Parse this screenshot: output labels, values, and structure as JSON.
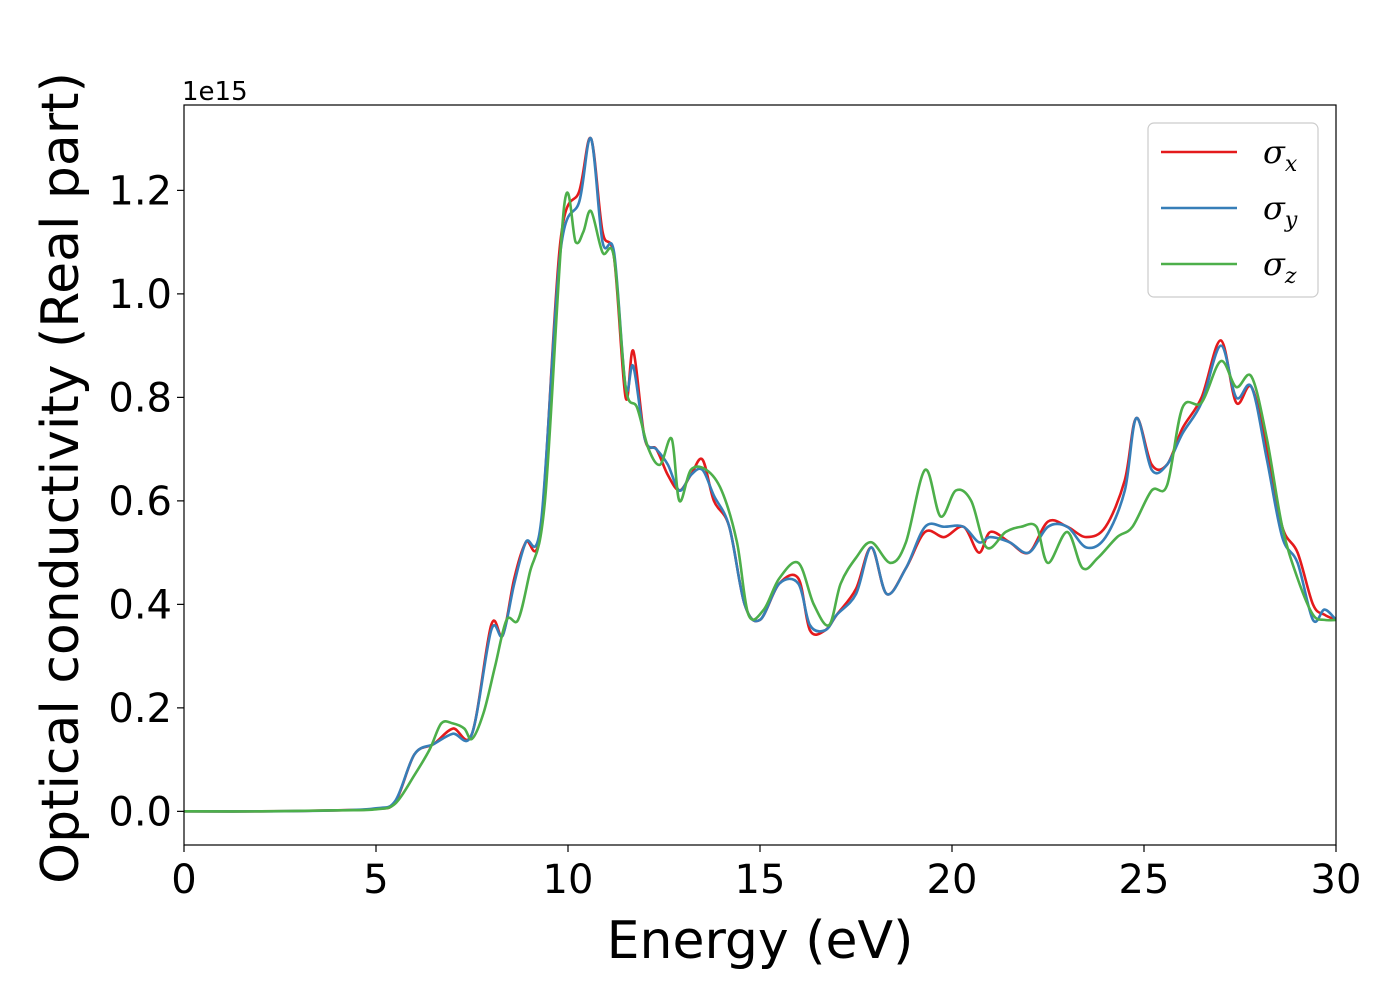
{
  "chart_data": {
    "type": "line",
    "xlabel": "Energy (eV)",
    "ylabel": "Optical conductivity (Real part)",
    "y_offset_text": "1e15",
    "xlim": [
      0,
      30
    ],
    "ylim": [
      -0.065,
      1.365
    ],
    "x_ticks": [
      0,
      5,
      10,
      15,
      20,
      25,
      30
    ],
    "y_ticks": [
      0.0,
      0.2,
      0.4,
      0.6,
      0.8,
      1.0,
      1.2
    ],
    "y_tick_labels": [
      "0.0",
      "0.2",
      "0.4",
      "0.6",
      "0.8",
      "1.0",
      "1.2"
    ],
    "grid": false,
    "legend_position": "top-right",
    "series": [
      {
        "name": "σx",
        "legend_symbol": "σ",
        "legend_subscript": "x",
        "color": "#e41a1c",
        "points": [
          [
            0,
            0.0
          ],
          [
            2,
            0.0
          ],
          [
            4,
            0.002
          ],
          [
            5,
            0.005
          ],
          [
            5.5,
            0.018
          ],
          [
            6.0,
            0.11
          ],
          [
            6.5,
            0.13
          ],
          [
            7.0,
            0.16
          ],
          [
            7.5,
            0.15
          ],
          [
            8.0,
            0.36
          ],
          [
            8.3,
            0.34
          ],
          [
            8.6,
            0.45
          ],
          [
            8.9,
            0.52
          ],
          [
            9.3,
            0.55
          ],
          [
            9.8,
            1.1
          ],
          [
            10.3,
            1.2
          ],
          [
            10.6,
            1.3
          ],
          [
            10.9,
            1.12
          ],
          [
            11.2,
            1.07
          ],
          [
            11.5,
            0.8
          ],
          [
            11.7,
            0.89
          ],
          [
            12.0,
            0.72
          ],
          [
            12.3,
            0.7
          ],
          [
            12.6,
            0.65
          ],
          [
            12.9,
            0.62
          ],
          [
            13.2,
            0.65
          ],
          [
            13.5,
            0.68
          ],
          [
            13.8,
            0.6
          ],
          [
            14.2,
            0.55
          ],
          [
            14.6,
            0.4
          ],
          [
            15.0,
            0.37
          ],
          [
            15.5,
            0.44
          ],
          [
            16.0,
            0.45
          ],
          [
            16.3,
            0.35
          ],
          [
            16.7,
            0.35
          ],
          [
            17.0,
            0.38
          ],
          [
            17.5,
            0.43
          ],
          [
            17.9,
            0.51
          ],
          [
            18.3,
            0.42
          ],
          [
            18.8,
            0.47
          ],
          [
            19.3,
            0.54
          ],
          [
            19.8,
            0.53
          ],
          [
            20.3,
            0.55
          ],
          [
            20.7,
            0.5
          ],
          [
            21.0,
            0.54
          ],
          [
            21.5,
            0.52
          ],
          [
            22.0,
            0.5
          ],
          [
            22.5,
            0.56
          ],
          [
            23.0,
            0.55
          ],
          [
            23.5,
            0.53
          ],
          [
            24.0,
            0.55
          ],
          [
            24.5,
            0.64
          ],
          [
            24.8,
            0.76
          ],
          [
            25.2,
            0.67
          ],
          [
            25.6,
            0.67
          ],
          [
            26.0,
            0.74
          ],
          [
            26.5,
            0.8
          ],
          [
            27.0,
            0.91
          ],
          [
            27.4,
            0.79
          ],
          [
            27.8,
            0.82
          ],
          [
            28.2,
            0.7
          ],
          [
            28.6,
            0.55
          ],
          [
            29.0,
            0.5
          ],
          [
            29.4,
            0.4
          ],
          [
            29.7,
            0.38
          ],
          [
            30.0,
            0.37
          ]
        ]
      },
      {
        "name": "σy",
        "legend_symbol": "σ",
        "legend_subscript": "y",
        "color": "#377eb8",
        "points": [
          [
            0,
            0.0
          ],
          [
            2,
            0.0
          ],
          [
            4,
            0.002
          ],
          [
            5,
            0.006
          ],
          [
            5.5,
            0.02
          ],
          [
            6.0,
            0.11
          ],
          [
            6.5,
            0.13
          ],
          [
            7.0,
            0.15
          ],
          [
            7.5,
            0.15
          ],
          [
            8.0,
            0.35
          ],
          [
            8.3,
            0.34
          ],
          [
            8.6,
            0.44
          ],
          [
            8.9,
            0.52
          ],
          [
            9.3,
            0.56
          ],
          [
            9.8,
            1.08
          ],
          [
            10.3,
            1.18
          ],
          [
            10.6,
            1.3
          ],
          [
            10.9,
            1.1
          ],
          [
            11.2,
            1.08
          ],
          [
            11.5,
            0.82
          ],
          [
            11.7,
            0.86
          ],
          [
            12.0,
            0.72
          ],
          [
            12.3,
            0.7
          ],
          [
            12.6,
            0.67
          ],
          [
            12.9,
            0.62
          ],
          [
            13.2,
            0.65
          ],
          [
            13.5,
            0.66
          ],
          [
            13.8,
            0.61
          ],
          [
            14.2,
            0.55
          ],
          [
            14.6,
            0.4
          ],
          [
            15.0,
            0.37
          ],
          [
            15.5,
            0.44
          ],
          [
            16.0,
            0.44
          ],
          [
            16.3,
            0.36
          ],
          [
            16.7,
            0.35
          ],
          [
            17.0,
            0.38
          ],
          [
            17.5,
            0.42
          ],
          [
            17.9,
            0.51
          ],
          [
            18.3,
            0.42
          ],
          [
            18.8,
            0.47
          ],
          [
            19.3,
            0.55
          ],
          [
            19.8,
            0.55
          ],
          [
            20.3,
            0.55
          ],
          [
            20.7,
            0.52
          ],
          [
            21.0,
            0.53
          ],
          [
            21.5,
            0.52
          ],
          [
            22.0,
            0.5
          ],
          [
            22.5,
            0.55
          ],
          [
            23.0,
            0.55
          ],
          [
            23.5,
            0.51
          ],
          [
            24.0,
            0.53
          ],
          [
            24.5,
            0.62
          ],
          [
            24.8,
            0.76
          ],
          [
            25.2,
            0.66
          ],
          [
            25.6,
            0.67
          ],
          [
            26.0,
            0.73
          ],
          [
            26.5,
            0.79
          ],
          [
            27.0,
            0.9
          ],
          [
            27.4,
            0.8
          ],
          [
            27.8,
            0.82
          ],
          [
            28.2,
            0.68
          ],
          [
            28.6,
            0.53
          ],
          [
            29.0,
            0.48
          ],
          [
            29.4,
            0.37
          ],
          [
            29.7,
            0.39
          ],
          [
            30.0,
            0.37
          ]
        ]
      },
      {
        "name": "σz",
        "legend_symbol": "σ",
        "legend_subscript": "z",
        "color": "#4daf4a",
        "points": [
          [
            0,
            0.0
          ],
          [
            2,
            0.0
          ],
          [
            4,
            0.002
          ],
          [
            5,
            0.004
          ],
          [
            5.5,
            0.015
          ],
          [
            6.0,
            0.07
          ],
          [
            6.4,
            0.12
          ],
          [
            6.7,
            0.17
          ],
          [
            7.0,
            0.17
          ],
          [
            7.3,
            0.16
          ],
          [
            7.5,
            0.14
          ],
          [
            7.8,
            0.19
          ],
          [
            8.1,
            0.28
          ],
          [
            8.4,
            0.37
          ],
          [
            8.7,
            0.37
          ],
          [
            9.0,
            0.46
          ],
          [
            9.4,
            0.6
          ],
          [
            9.9,
            1.17
          ],
          [
            10.2,
            1.1
          ],
          [
            10.4,
            1.12
          ],
          [
            10.6,
            1.16
          ],
          [
            10.9,
            1.08
          ],
          [
            11.2,
            1.07
          ],
          [
            11.5,
            0.82
          ],
          [
            11.8,
            0.78
          ],
          [
            12.1,
            0.7
          ],
          [
            12.4,
            0.67
          ],
          [
            12.7,
            0.72
          ],
          [
            12.9,
            0.6
          ],
          [
            13.2,
            0.66
          ],
          [
            13.6,
            0.66
          ],
          [
            14.0,
            0.62
          ],
          [
            14.4,
            0.52
          ],
          [
            14.7,
            0.38
          ],
          [
            15.1,
            0.39
          ],
          [
            15.5,
            0.45
          ],
          [
            16.0,
            0.48
          ],
          [
            16.4,
            0.4
          ],
          [
            16.8,
            0.36
          ],
          [
            17.1,
            0.44
          ],
          [
            17.5,
            0.49
          ],
          [
            17.9,
            0.52
          ],
          [
            18.4,
            0.48
          ],
          [
            18.8,
            0.52
          ],
          [
            19.3,
            0.66
          ],
          [
            19.7,
            0.57
          ],
          [
            20.1,
            0.62
          ],
          [
            20.5,
            0.6
          ],
          [
            20.9,
            0.51
          ],
          [
            21.4,
            0.54
          ],
          [
            21.8,
            0.55
          ],
          [
            22.2,
            0.55
          ],
          [
            22.5,
            0.48
          ],
          [
            23.0,
            0.54
          ],
          [
            23.4,
            0.47
          ],
          [
            23.8,
            0.49
          ],
          [
            24.3,
            0.53
          ],
          [
            24.7,
            0.55
          ],
          [
            25.2,
            0.62
          ],
          [
            25.6,
            0.63
          ],
          [
            26.0,
            0.78
          ],
          [
            26.5,
            0.79
          ],
          [
            27.0,
            0.87
          ],
          [
            27.4,
            0.82
          ],
          [
            27.8,
            0.84
          ],
          [
            28.2,
            0.72
          ],
          [
            28.6,
            0.55
          ],
          [
            29.0,
            0.45
          ],
          [
            29.4,
            0.38
          ],
          [
            29.7,
            0.37
          ],
          [
            30.0,
            0.37
          ]
        ]
      }
    ]
  }
}
